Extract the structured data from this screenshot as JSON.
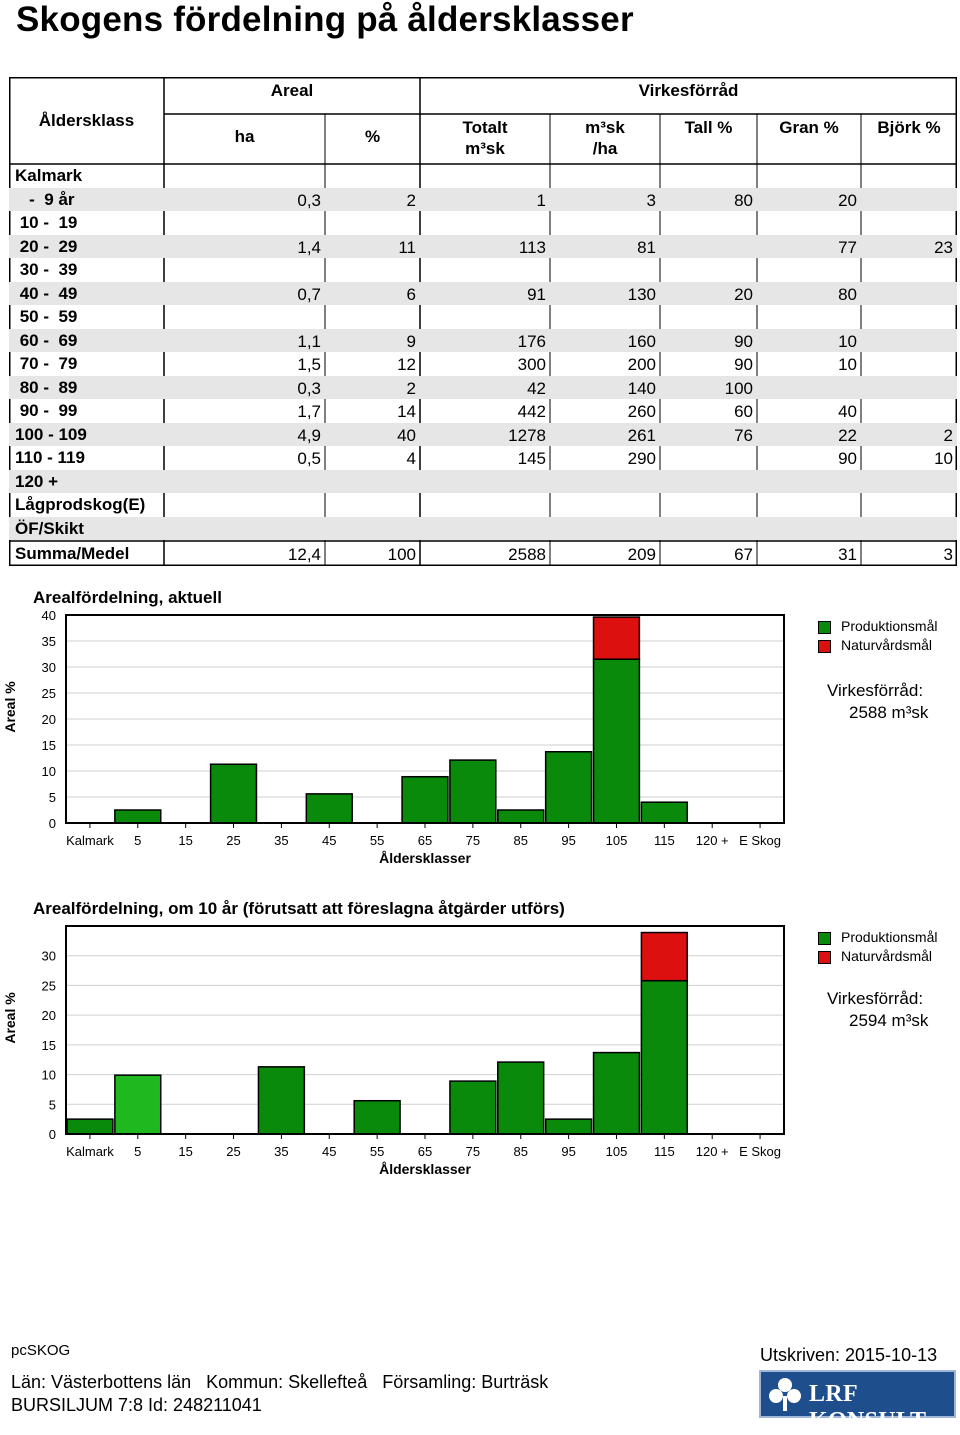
{
  "title": "Skogens fördelning på åldersklasser",
  "table": {
    "headers": {
      "age_class": "Åldersklass",
      "areal": "Areal",
      "virkesforrad": "Virkesförråd",
      "ha": "ha",
      "pct": "%",
      "total_1": "Totalt",
      "total_2": "m³sk",
      "per_ha_1": "m³sk",
      "per_ha_2": "/ha",
      "tall": "Tall %",
      "gran": "Gran %",
      "bjork": "Björk %"
    },
    "rows": [
      {
        "label": "Kalmark",
        "ha": "",
        "pct": "",
        "total": "",
        "perha": "",
        "tall": "",
        "gran": "",
        "bjork": ""
      },
      {
        "label": "   -  9 år",
        "ha": "0,3",
        "pct": "2",
        "total": "1",
        "perha": "3",
        "tall": "80",
        "gran": "20",
        "bjork": ""
      },
      {
        "label": " 10 -  19",
        "ha": "",
        "pct": "",
        "total": "",
        "perha": "",
        "tall": "",
        "gran": "",
        "bjork": ""
      },
      {
        "label": " 20 -  29",
        "ha": "1,4",
        "pct": "11",
        "total": "113",
        "perha": "81",
        "tall": "",
        "gran": "77",
        "bjork": "23"
      },
      {
        "label": " 30 -  39",
        "ha": "",
        "pct": "",
        "total": "",
        "perha": "",
        "tall": "",
        "gran": "",
        "bjork": ""
      },
      {
        "label": " 40 -  49",
        "ha": "0,7",
        "pct": "6",
        "total": "91",
        "perha": "130",
        "tall": "20",
        "gran": "80",
        "bjork": ""
      },
      {
        "label": " 50 -  59",
        "ha": "",
        "pct": "",
        "total": "",
        "perha": "",
        "tall": "",
        "gran": "",
        "bjork": ""
      },
      {
        "label": " 60 -  69",
        "ha": "1,1",
        "pct": "9",
        "total": "176",
        "perha": "160",
        "tall": "90",
        "gran": "10",
        "bjork": ""
      },
      {
        "label": " 70 -  79",
        "ha": "1,5",
        "pct": "12",
        "total": "300",
        "perha": "200",
        "tall": "90",
        "gran": "10",
        "bjork": ""
      },
      {
        "label": " 80 -  89",
        "ha": "0,3",
        "pct": "2",
        "total": "42",
        "perha": "140",
        "tall": "100",
        "gran": "",
        "bjork": ""
      },
      {
        "label": " 90 -  99",
        "ha": "1,7",
        "pct": "14",
        "total": "442",
        "perha": "260",
        "tall": "60",
        "gran": "40",
        "bjork": ""
      },
      {
        "label": "100 - 109",
        "ha": "4,9",
        "pct": "40",
        "total": "1278",
        "perha": "261",
        "tall": "76",
        "gran": "22",
        "bjork": "2"
      },
      {
        "label": "110 - 119",
        "ha": "0,5",
        "pct": "4",
        "total": "145",
        "perha": "290",
        "tall": "",
        "gran": "90",
        "bjork": "10"
      },
      {
        "label": "120 +",
        "ha": "",
        "pct": "",
        "total": "",
        "perha": "",
        "tall": "",
        "gran": "",
        "bjork": ""
      },
      {
        "label": "Lågprodskog(E)",
        "ha": "",
        "pct": "",
        "total": "",
        "perha": "",
        "tall": "",
        "gran": "",
        "bjork": ""
      },
      {
        "label": "ÖF/Skikt",
        "ha": "",
        "pct": "",
        "total": "",
        "perha": "",
        "tall": "",
        "gran": "",
        "bjork": ""
      }
    ],
    "summary": {
      "label": "Summa/Medel",
      "ha": "12,4",
      "pct": "100",
      "total": "2588",
      "perha": "209",
      "tall": "67",
      "gran": "31",
      "bjork": "3"
    }
  },
  "chart_data": [
    {
      "type": "bar",
      "title": "Arealfördelning, aktuell",
      "xlabel": "Åldersklasser",
      "ylabel": "Areal %",
      "ylim": [
        0,
        40
      ],
      "yticks": [
        "0",
        "5",
        "10",
        "15",
        "20",
        "25",
        "30",
        "35",
        "40"
      ],
      "categories": [
        "Kalmark",
        "5",
        "15",
        "25",
        "35",
        "45",
        "55",
        "65",
        "75",
        "85",
        "95",
        "105",
        "115",
        "120 +",
        "E Skog"
      ],
      "series": [
        {
          "name": "Produktionsmål",
          "color": "#0a8a0a",
          "values": [
            0,
            2.5,
            0,
            11.3,
            0,
            5.6,
            0,
            8.9,
            12.1,
            2.5,
            13.7,
            31.5,
            4.0,
            0,
            0
          ]
        },
        {
          "name": "Naturvårdsmål",
          "color": "#dd1010",
          "values": [
            0,
            0,
            0,
            0,
            0,
            0,
            0,
            0,
            0,
            0,
            0,
            8.1,
            0,
            0,
            0
          ]
        }
      ],
      "legend": [
        "Produktionsmål",
        "Naturvårdsmål"
      ],
      "annotation_1": "Virkesförråd:",
      "annotation_2": "2588 m³sk"
    },
    {
      "type": "bar",
      "title": "Arealfördelning, om 10 år (förutsatt att föreslagna åtgärder utförs)",
      "xlabel": "Åldersklasser",
      "ylabel": "Areal %",
      "ylim": [
        0,
        35
      ],
      "yticks": [
        "0",
        "5",
        "10",
        "15",
        "20",
        "25",
        "30"
      ],
      "categories": [
        "Kalmark",
        "5",
        "15",
        "25",
        "35",
        "45",
        "55",
        "65",
        "75",
        "85",
        "95",
        "105",
        "115",
        "120 +",
        "E Skog"
      ],
      "series": [
        {
          "name": "Produktionsmål",
          "color": "#0a8a0a",
          "values": [
            2.5,
            9.9,
            0,
            0,
            11.3,
            0,
            5.6,
            0,
            8.9,
            12.1,
            2.5,
            13.7,
            25.8,
            0,
            0
          ]
        },
        {
          "name": "Naturvårdsmål",
          "color": "#dd1010",
          "values": [
            0,
            0,
            0,
            0,
            0,
            0,
            0,
            0,
            0,
            0,
            0,
            0,
            8.1,
            0,
            0
          ]
        }
      ],
      "highlight_color": "#1fb81f",
      "legend": [
        "Produktionsmål",
        "Naturvårdsmål"
      ],
      "annotation_1": "Virkesförråd:",
      "annotation_2": "2594 m³sk"
    }
  ],
  "footer": {
    "app": "pcSKOG",
    "printed": "Utskriven: 2015-10-13",
    "location": "Län: Västerbottens län   Kommun: Skellefteå   Församling: Burträsk",
    "property": "BURSILJUM 7:8 Id: 248211041",
    "logo": "LRF KONSULT"
  }
}
